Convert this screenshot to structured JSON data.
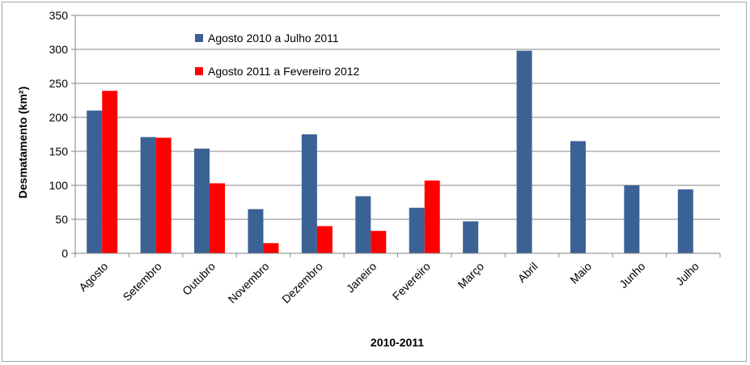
{
  "chart_data": {
    "type": "bar",
    "categories": [
      "Agosto",
      "Setembro",
      "Outubro",
      "Novembro",
      "Dezembro",
      "Janeiro",
      "Fevereiro",
      "Março",
      "Abril",
      "Maio",
      "Junho",
      "Julho"
    ],
    "series": [
      {
        "name": "Agosto 2010 a Julho 2011",
        "color": "#3b6294",
        "values": [
          210,
          171,
          154,
          65,
          175,
          84,
          67,
          47,
          298,
          165,
          100,
          94
        ]
      },
      {
        "name": "Agosto 2011 a Fevereiro 2012",
        "color": "#ff0000",
        "values": [
          239,
          170,
          103,
          15,
          40,
          33,
          107,
          null,
          null,
          null,
          null,
          null
        ]
      }
    ],
    "xlabel": "2010-2011",
    "ylabel": "Desmatamento (km²)",
    "ylim": [
      0,
      350
    ],
    "yticks": [
      0,
      50,
      100,
      150,
      200,
      250,
      300,
      350
    ],
    "grid": true,
    "legend_position": "top-left"
  }
}
